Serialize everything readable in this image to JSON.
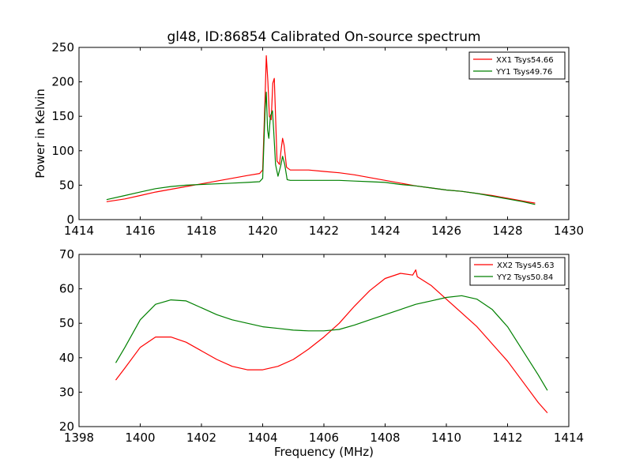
{
  "figure_title": "gl48, ID:86854 Calibrated On-source spectrum",
  "chart_data": [
    {
      "type": "line",
      "ylabel": "Power in Kelvin",
      "xlabel": "",
      "xlim": [
        1414,
        1430
      ],
      "ylim": [
        0,
        250
      ],
      "xticks": [
        1414,
        1416,
        1418,
        1420,
        1422,
        1424,
        1426,
        1428,
        1430
      ],
      "yticks": [
        0,
        50,
        100,
        150,
        200,
        250
      ],
      "legend": "top-right",
      "grid": false,
      "series": [
        {
          "name": "XX1 Tsys54.66",
          "color": "#ff0000",
          "points": [
            [
              1414.9,
              26
            ],
            [
              1415.5,
              30
            ],
            [
              1416,
              35
            ],
            [
              1416.5,
              40
            ],
            [
              1417,
              44
            ],
            [
              1417.5,
              48
            ],
            [
              1418,
              52
            ],
            [
              1418.5,
              56
            ],
            [
              1419,
              60
            ],
            [
              1419.5,
              64
            ],
            [
              1419.9,
              67
            ],
            [
              1420.0,
              72
            ],
            [
              1420.08,
              180
            ],
            [
              1420.12,
              238
            ],
            [
              1420.17,
              200
            ],
            [
              1420.22,
              150
            ],
            [
              1420.28,
              145
            ],
            [
              1420.33,
              198
            ],
            [
              1420.38,
              205
            ],
            [
              1420.42,
              150
            ],
            [
              1420.47,
              85
            ],
            [
              1420.55,
              80
            ],
            [
              1420.6,
              100
            ],
            [
              1420.65,
              118
            ],
            [
              1420.7,
              108
            ],
            [
              1420.78,
              76
            ],
            [
              1420.9,
              72
            ],
            [
              1421.5,
              72
            ],
            [
              1422,
              70
            ],
            [
              1422.5,
              68
            ],
            [
              1423,
              65
            ],
            [
              1423.5,
              61
            ],
            [
              1424,
              57
            ],
            [
              1424.5,
              53
            ],
            [
              1425,
              49
            ],
            [
              1425.5,
              46
            ],
            [
              1426,
              43
            ],
            [
              1426.5,
              41
            ],
            [
              1427,
              38
            ],
            [
              1427.5,
              35
            ],
            [
              1428,
              31
            ],
            [
              1428.5,
              27
            ],
            [
              1428.9,
              24
            ]
          ]
        },
        {
          "name": "YY1 Tsys49.76",
          "color": "#008000",
          "points": [
            [
              1414.9,
              29
            ],
            [
              1415.5,
              35
            ],
            [
              1416,
              40
            ],
            [
              1416.5,
              45
            ],
            [
              1417,
              48
            ],
            [
              1417.5,
              50
            ],
            [
              1418,
              51
            ],
            [
              1418.5,
              52
            ],
            [
              1419,
              53
            ],
            [
              1419.5,
              54
            ],
            [
              1419.9,
              55
            ],
            [
              1420.0,
              60
            ],
            [
              1420.08,
              160
            ],
            [
              1420.12,
              185
            ],
            [
              1420.16,
              130
            ],
            [
              1420.2,
              118
            ],
            [
              1420.25,
              150
            ],
            [
              1420.32,
              158
            ],
            [
              1420.36,
              130
            ],
            [
              1420.42,
              80
            ],
            [
              1420.5,
              63
            ],
            [
              1420.6,
              80
            ],
            [
              1420.65,
              92
            ],
            [
              1420.72,
              80
            ],
            [
              1420.8,
              58
            ],
            [
              1420.9,
              57
            ],
            [
              1421.5,
              57
            ],
            [
              1422,
              57
            ],
            [
              1422.5,
              57
            ],
            [
              1423,
              56
            ],
            [
              1423.5,
              55
            ],
            [
              1424,
              54
            ],
            [
              1424.5,
              51
            ],
            [
              1425,
              49
            ],
            [
              1425.5,
              46
            ],
            [
              1426,
              43
            ],
            [
              1426.5,
              41
            ],
            [
              1427,
              38
            ],
            [
              1427.5,
              34
            ],
            [
              1428,
              30
            ],
            [
              1428.5,
              26
            ],
            [
              1428.9,
              22
            ]
          ]
        }
      ]
    },
    {
      "type": "line",
      "xlabel": "Frequency (MHz)",
      "ylabel": "",
      "xlim": [
        1398,
        1414
      ],
      "ylim": [
        20,
        70
      ],
      "xticks": [
        1398,
        1400,
        1402,
        1404,
        1406,
        1408,
        1410,
        1412,
        1414
      ],
      "yticks": [
        20,
        30,
        40,
        50,
        60,
        70
      ],
      "legend": "top-right",
      "grid": false,
      "series": [
        {
          "name": "XX2 Tsys45.63",
          "color": "#ff0000",
          "points": [
            [
              1399.2,
              33.5
            ],
            [
              1399.5,
              37
            ],
            [
              1400,
              43
            ],
            [
              1400.5,
              46
            ],
            [
              1401,
              46
            ],
            [
              1401.5,
              44.5
            ],
            [
              1402,
              42
            ],
            [
              1402.5,
              39.5
            ],
            [
              1403,
              37.5
            ],
            [
              1403.5,
              36.5
            ],
            [
              1404,
              36.5
            ],
            [
              1404.5,
              37.5
            ],
            [
              1405,
              39.5
            ],
            [
              1405.5,
              42.5
            ],
            [
              1406,
              46
            ],
            [
              1406.5,
              50
            ],
            [
              1407,
              55
            ],
            [
              1407.5,
              59.5
            ],
            [
              1408,
              63
            ],
            [
              1408.5,
              64.5
            ],
            [
              1408.9,
              64
            ],
            [
              1409.0,
              65.5
            ],
            [
              1409.05,
              63.5
            ],
            [
              1409.5,
              61
            ],
            [
              1410,
              57
            ],
            [
              1410.5,
              53
            ],
            [
              1411,
              49
            ],
            [
              1411.5,
              44
            ],
            [
              1412,
              39
            ],
            [
              1412.5,
              33
            ],
            [
              1413,
              27
            ],
            [
              1413.3,
              24
            ]
          ]
        },
        {
          "name": "YY2 Tsys50.84",
          "color": "#008000",
          "points": [
            [
              1399.2,
              38.5
            ],
            [
              1399.5,
              43
            ],
            [
              1400,
              51
            ],
            [
              1400.5,
              55.5
            ],
            [
              1401,
              56.8
            ],
            [
              1401.5,
              56.5
            ],
            [
              1402,
              54.5
            ],
            [
              1402.5,
              52.5
            ],
            [
              1403,
              51
            ],
            [
              1403.5,
              50
            ],
            [
              1404,
              49
            ],
            [
              1404.5,
              48.5
            ],
            [
              1405,
              48
            ],
            [
              1405.5,
              47.8
            ],
            [
              1406,
              47.8
            ],
            [
              1406.5,
              48.2
            ],
            [
              1407,
              49.5
            ],
            [
              1407.5,
              51
            ],
            [
              1408,
              52.5
            ],
            [
              1408.5,
              54
            ],
            [
              1409,
              55.5
            ],
            [
              1409.5,
              56.5
            ],
            [
              1410,
              57.5
            ],
            [
              1410.5,
              58
            ],
            [
              1411,
              57
            ],
            [
              1411.5,
              54
            ],
            [
              1412,
              49
            ],
            [
              1412.5,
              42
            ],
            [
              1413,
              35
            ],
            [
              1413.3,
              30.5
            ]
          ]
        }
      ]
    }
  ]
}
